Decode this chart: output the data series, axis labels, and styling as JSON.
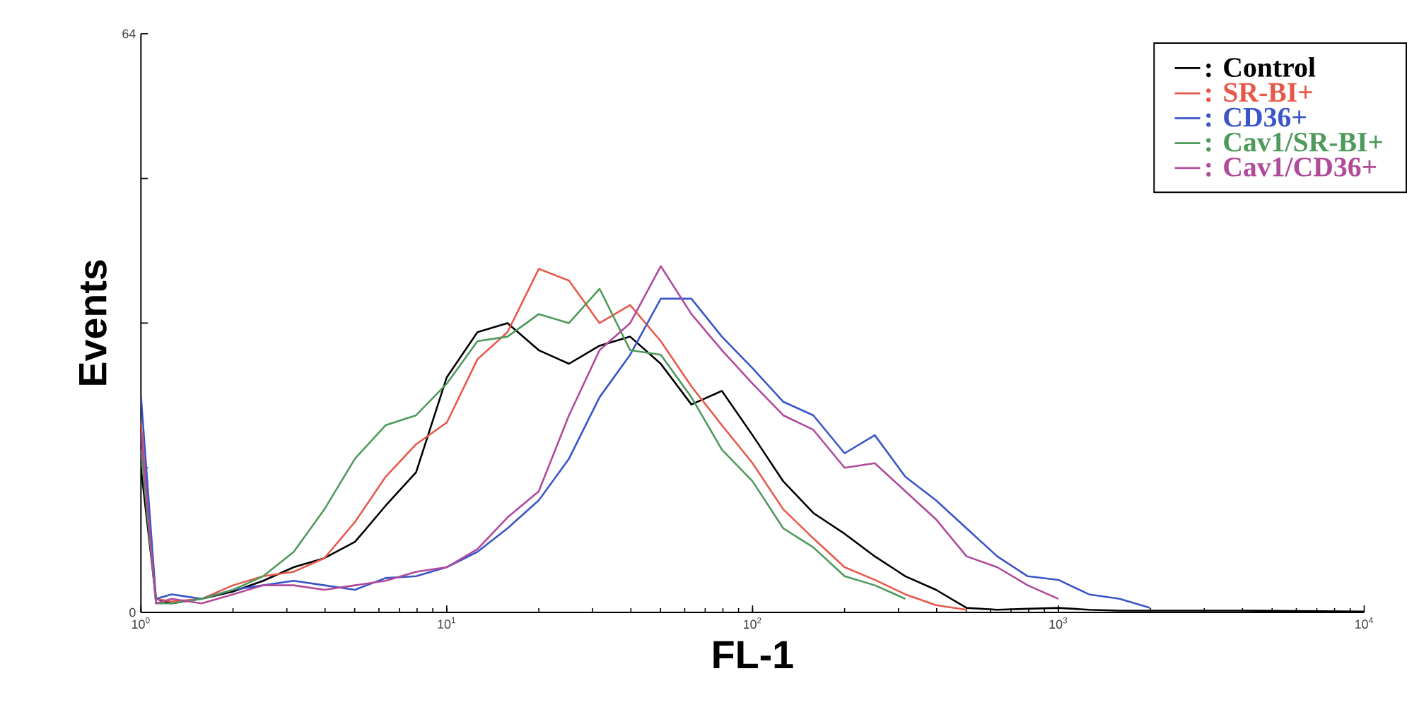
{
  "chart_data": {
    "type": "line",
    "xlabel": "FL-1",
    "ylabel": "Events",
    "log": "x",
    "x": [
      1,
      1.12,
      1.26,
      1.58,
      2,
      2.51,
      3.16,
      3.98,
      5.01,
      6.31,
      7.94,
      10,
      12.6,
      15.8,
      20,
      25.1,
      31.6,
      39.8,
      50.1,
      63.1,
      79.4,
      100,
      126,
      158,
      200,
      251,
      316,
      398,
      501,
      631,
      794,
      1000,
      1259,
      1585,
      1995,
      2512,
      3981,
      10000
    ],
    "xlim": [
      1,
      10000
    ],
    "xticks": [
      {
        "value": 1,
        "label": "10$^{0}$"
      },
      {
        "value": 10,
        "label": "10$^{1}$"
      },
      {
        "value": 100,
        "label": "10$^{2}$"
      },
      {
        "value": 1000,
        "label": "10$^{3}$"
      },
      {
        "value": 10000,
        "label": "10$^{4}$"
      }
    ],
    "ylim": [
      0,
      64
    ],
    "yticks": [
      0,
      {
        "value": 16,
        "label": null
      },
      {
        "value": 32,
        "label": null
      },
      {
        "value": 48,
        "label": null
      },
      64
    ],
    "grid": false,
    "legend": "top right",
    "marker": "none",
    "line_style": "solid",
    "series": [
      {
        "name": ": Control",
        "color": "#000000",
        "values": [
          16,
          1.5,
          1,
          1.5,
          2.3,
          3.5,
          5,
          6,
          7.8,
          11.8,
          15.5,
          26,
          31,
          32,
          29,
          27.5,
          29.5,
          30.5,
          27.5,
          23,
          24.5,
          19.6,
          14.5,
          11,
          8.7,
          6.2,
          4,
          2.5,
          0.5,
          0.3,
          0.4,
          0.5,
          0.3,
          0.2,
          0.2,
          0.2,
          0.2,
          0.1
        ]
      },
      {
        "name": ": SR-BI+",
        "color": "#e8584a",
        "values": [
          21,
          1.5,
          1.2,
          1.5,
          3,
          4,
          4.5,
          6,
          10,
          15,
          18.6,
          21,
          28,
          31,
          38,
          36.7,
          32,
          34,
          30,
          25,
          20.7,
          16.5,
          11.4,
          8.2,
          5,
          3.6,
          2,
          0.8,
          0.3,
          null,
          null,
          null,
          null,
          null,
          null,
          null,
          null,
          null
        ]
      },
      {
        "name": ": CD36+",
        "color": "#3a55c8",
        "values": [
          24,
          1.5,
          2,
          1.5,
          2.5,
          3,
          3.5,
          3,
          2.5,
          3.8,
          4,
          5,
          6.7,
          9.3,
          12.4,
          17,
          23.8,
          28.5,
          34.7,
          34.7,
          30.5,
          27,
          23.3,
          21.8,
          17.6,
          19.6,
          15,
          12.4,
          9.3,
          6.2,
          4,
          3.6,
          2,
          1.5,
          0.5,
          null,
          null,
          null
        ]
      },
      {
        "name": ": Cav1/SR-BI+",
        "color": "#4e9a5a",
        "values": [
          18,
          1,
          1,
          1.5,
          2.5,
          4,
          6.7,
          11.4,
          17,
          20.7,
          21.8,
          25.3,
          30,
          30.5,
          33,
          32,
          35.8,
          29,
          28.5,
          23.8,
          18,
          14.5,
          9.3,
          7.2,
          4,
          3,
          1.5,
          null,
          null,
          null,
          null,
          null,
          null,
          null,
          null,
          null,
          null,
          null
        ]
      },
      {
        "name": ": Cav1/CD36+",
        "color": "#b04a9a",
        "values": [
          20,
          1,
          1.5,
          1,
          2,
          3,
          3,
          2.5,
          3,
          3.5,
          4.5,
          5,
          7,
          10.5,
          13.4,
          21.8,
          29,
          32,
          38.3,
          33,
          29,
          25.3,
          21.8,
          20.2,
          16,
          16.5,
          13.4,
          10.3,
          6.2,
          5,
          3,
          1.5,
          null,
          null,
          null,
          null,
          null,
          null
        ]
      }
    ]
  }
}
